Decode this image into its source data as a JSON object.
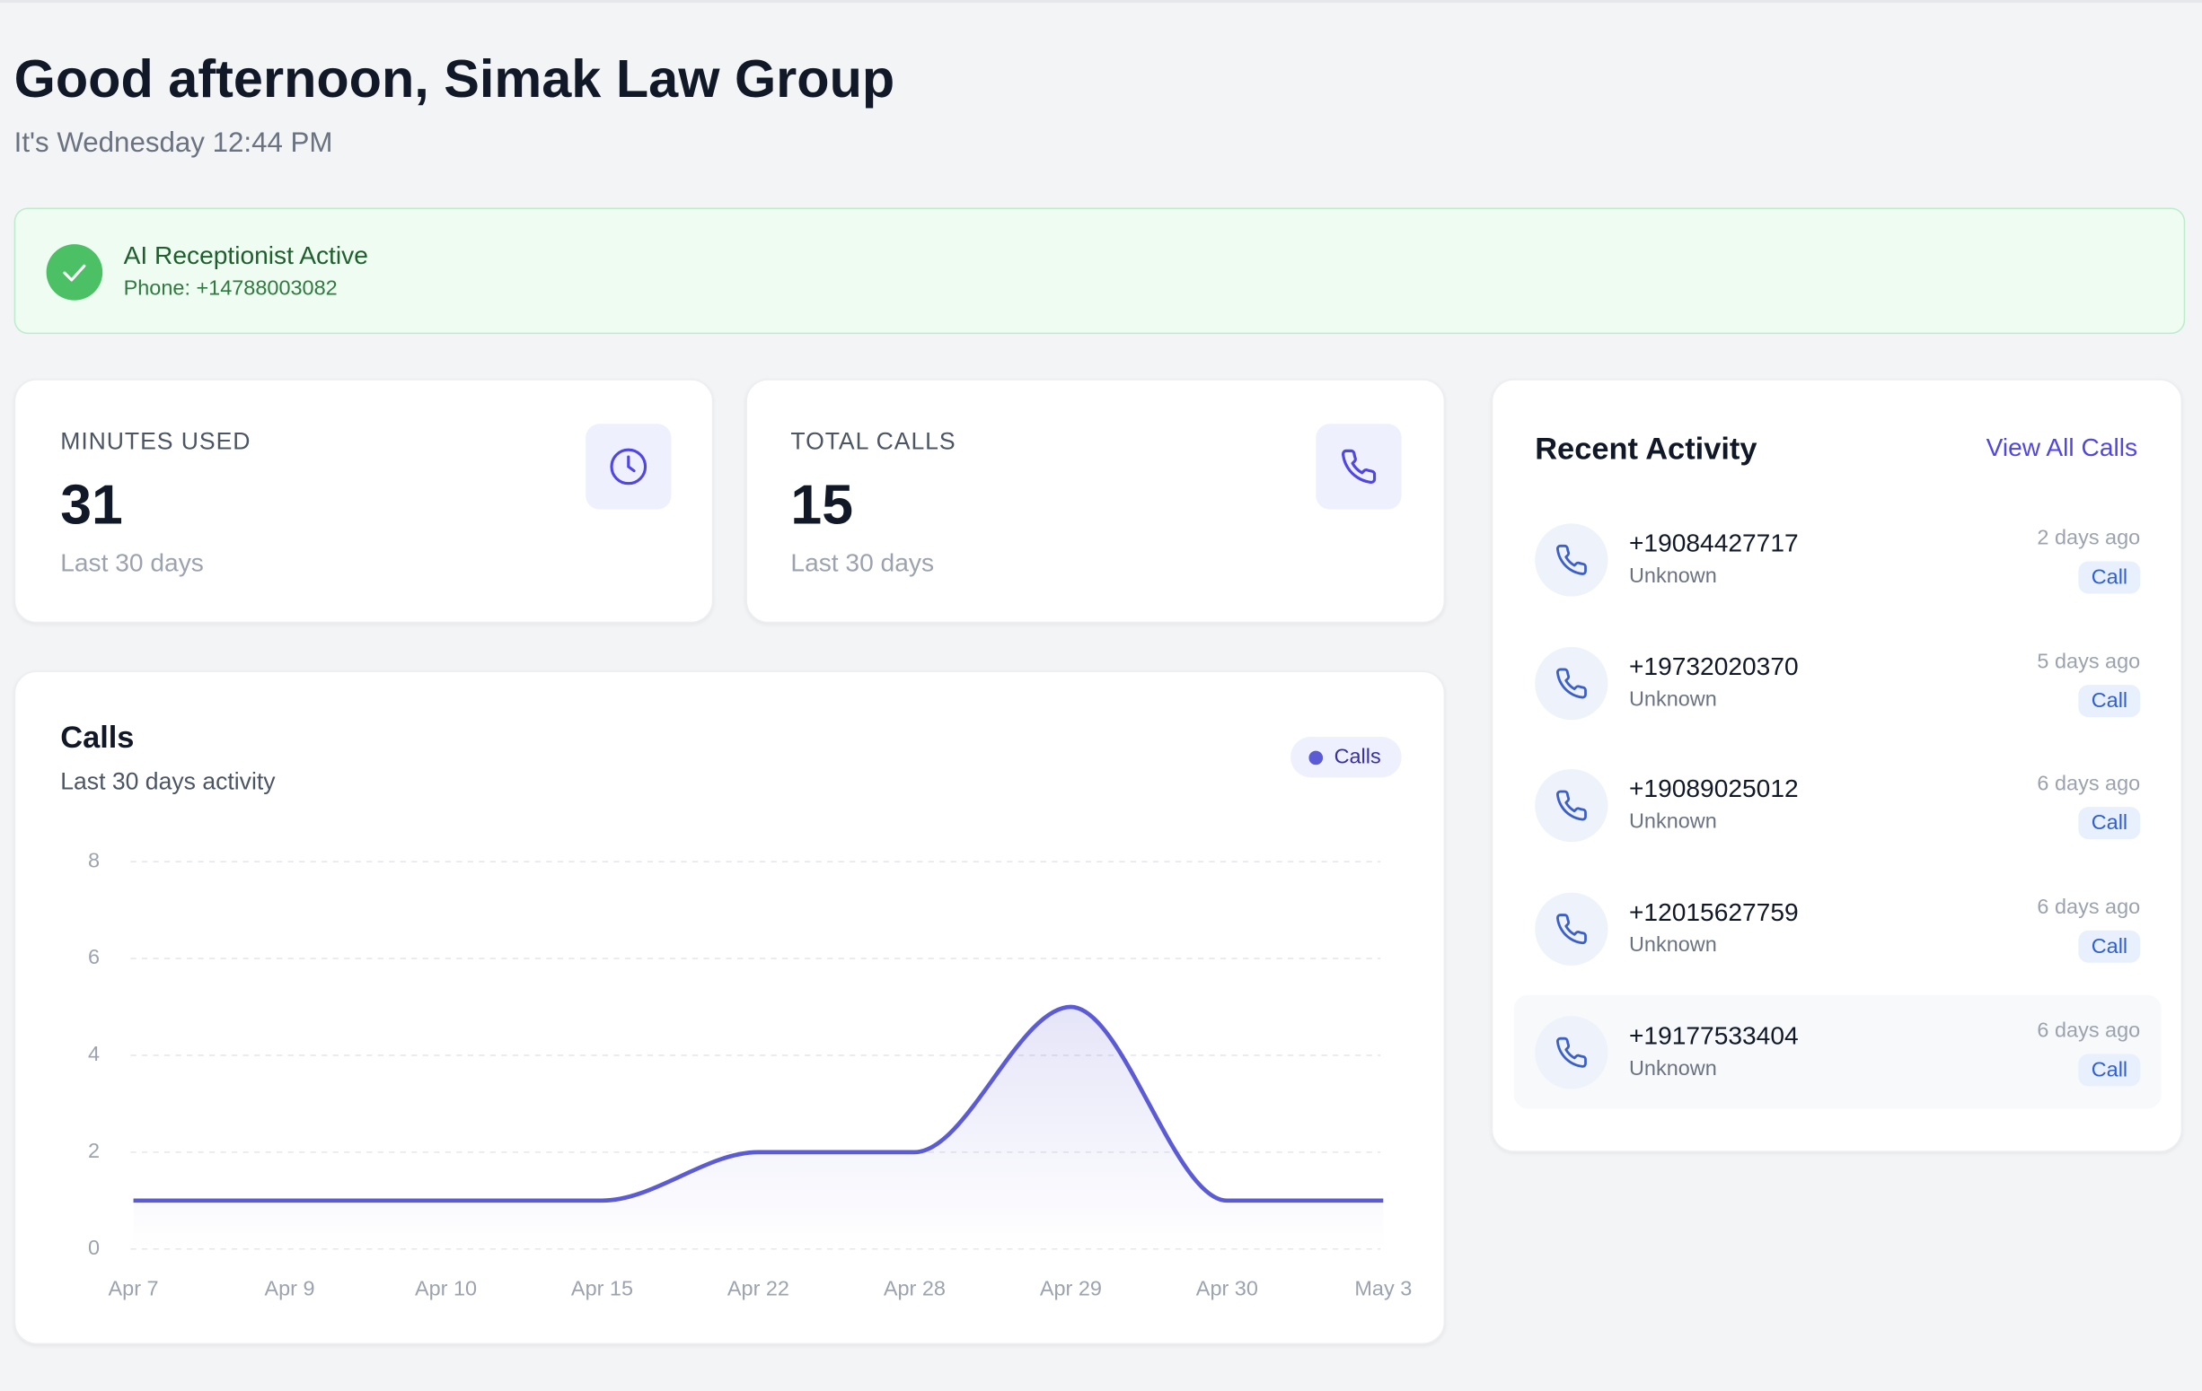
{
  "header": {
    "title": "Good afternoon, Simak Law Group",
    "subtitle": "It's Wednesday 12:44 PM"
  },
  "status": {
    "title": "AI Receptionist Active",
    "phone": "Phone: +14788003082"
  },
  "stats": [
    {
      "label": "MINUTES USED",
      "value": "31",
      "period": "Last 30 days"
    },
    {
      "label": "TOTAL CALLS",
      "value": "15",
      "period": "Last 30 days"
    }
  ],
  "chart_data": {
    "type": "line",
    "title": "Calls",
    "subtitle": "Last 30 days activity",
    "categories": [
      "Apr 7",
      "Apr 9",
      "Apr 10",
      "Apr 15",
      "Apr 22",
      "Apr 28",
      "Apr 29",
      "Apr 30",
      "May 3"
    ],
    "series": [
      {
        "name": "Calls",
        "color": "#5b5bd6",
        "values": [
          1,
          1,
          1,
          1,
          2,
          2,
          5,
          1,
          1
        ]
      }
    ],
    "ylim": [
      0,
      8
    ],
    "yticks": [
      0,
      2,
      4,
      6,
      8
    ],
    "grid": true,
    "smooth": true
  },
  "recent_activity": {
    "title": "Recent Activity",
    "link": "View All Calls",
    "items": [
      {
        "number": "+19084427717",
        "name": "Unknown",
        "time": "2 days ago",
        "type": "Call"
      },
      {
        "number": "+19732020370",
        "name": "Unknown",
        "time": "5 days ago",
        "type": "Call"
      },
      {
        "number": "+19089025012",
        "name": "Unknown",
        "time": "6 days ago",
        "type": "Call"
      },
      {
        "number": "+12015627759",
        "name": "Unknown",
        "time": "6 days ago",
        "type": "Call"
      },
      {
        "number": "+19177533404",
        "name": "Unknown",
        "time": "6 days ago",
        "type": "Call"
      }
    ]
  }
}
